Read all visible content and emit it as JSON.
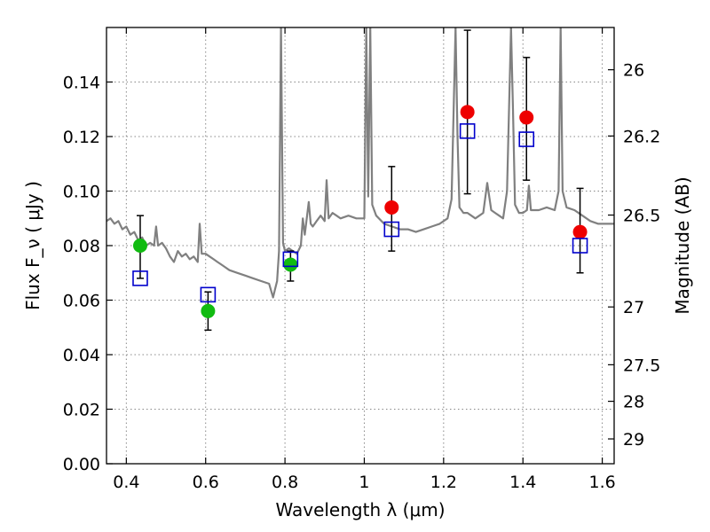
{
  "chart_data": {
    "type": "scatter",
    "xlabel": "Wavelength  λ (μm)",
    "ylabel": "Flux  F_ν  ( μJy )",
    "y2label": "Magnitude (AB)",
    "xlim": [
      0.35,
      1.63
    ],
    "ylim": [
      0.0,
      0.16
    ],
    "xticks": [
      0.4,
      0.6,
      0.8,
      1.0,
      1.2,
      1.4,
      1.6
    ],
    "xtick_labels": [
      "0.4",
      "0.6",
      "0.8",
      "1",
      "1.2",
      "1.4",
      "1.6"
    ],
    "yticks": [
      0.0,
      0.02,
      0.04,
      0.06,
      0.08,
      0.1,
      0.12,
      0.14
    ],
    "ytick_labels": [
      "0.00",
      "0.02",
      "0.04",
      "0.06",
      "0.08",
      "0.10",
      "0.12",
      "0.14"
    ],
    "y2ticks": [
      {
        "label": "26",
        "flux": 0.1445
      },
      {
        "label": "26.2",
        "flux": 0.1202
      },
      {
        "label": "26.5",
        "flux": 0.0912
      },
      {
        "label": "27",
        "flux": 0.0575
      },
      {
        "label": "27.5",
        "flux": 0.0363
      },
      {
        "label": "28",
        "flux": 0.0229
      },
      {
        "label": "29",
        "flux": 0.0091
      }
    ],
    "grid": true,
    "colors": {
      "spectrum": "#808080",
      "green_points": "#11bb11",
      "red_points": "#ee0000",
      "model_squares": "#0000cc",
      "errorbars": "#000000"
    },
    "spectrum": [
      [
        0.35,
        0.089
      ],
      [
        0.36,
        0.09
      ],
      [
        0.37,
        0.088
      ],
      [
        0.38,
        0.089
      ],
      [
        0.39,
        0.086
      ],
      [
        0.4,
        0.087
      ],
      [
        0.41,
        0.084
      ],
      [
        0.42,
        0.085
      ],
      [
        0.43,
        0.082
      ],
      [
        0.44,
        0.083
      ],
      [
        0.45,
        0.08
      ],
      [
        0.46,
        0.081
      ],
      [
        0.47,
        0.08
      ],
      [
        0.475,
        0.087
      ],
      [
        0.48,
        0.08
      ],
      [
        0.49,
        0.081
      ],
      [
        0.5,
        0.079
      ],
      [
        0.51,
        0.076
      ],
      [
        0.52,
        0.074
      ],
      [
        0.53,
        0.078
      ],
      [
        0.54,
        0.076
      ],
      [
        0.55,
        0.077
      ],
      [
        0.56,
        0.075
      ],
      [
        0.57,
        0.076
      ],
      [
        0.58,
        0.074
      ],
      [
        0.585,
        0.088
      ],
      [
        0.59,
        0.077
      ],
      [
        0.6,
        0.077
      ],
      [
        0.61,
        0.076
      ],
      [
        0.62,
        0.075
      ],
      [
        0.63,
        0.074
      ],
      [
        0.64,
        0.073
      ],
      [
        0.65,
        0.072
      ],
      [
        0.66,
        0.071
      ],
      [
        0.68,
        0.07
      ],
      [
        0.7,
        0.069
      ],
      [
        0.72,
        0.068
      ],
      [
        0.74,
        0.067
      ],
      [
        0.76,
        0.066
      ],
      [
        0.77,
        0.061
      ],
      [
        0.775,
        0.064
      ],
      [
        0.78,
        0.067
      ],
      [
        0.785,
        0.078
      ],
      [
        0.79,
        0.16
      ],
      [
        0.795,
        0.081
      ],
      [
        0.8,
        0.078
      ],
      [
        0.81,
        0.079
      ],
      [
        0.82,
        0.078
      ],
      [
        0.83,
        0.077
      ],
      [
        0.84,
        0.08
      ],
      [
        0.845,
        0.09
      ],
      [
        0.85,
        0.084
      ],
      [
        0.86,
        0.096
      ],
      [
        0.865,
        0.088
      ],
      [
        0.87,
        0.087
      ],
      [
        0.88,
        0.089
      ],
      [
        0.89,
        0.091
      ],
      [
        0.9,
        0.089
      ],
      [
        0.905,
        0.104
      ],
      [
        0.91,
        0.09
      ],
      [
        0.92,
        0.092
      ],
      [
        0.93,
        0.091
      ],
      [
        0.94,
        0.09
      ],
      [
        0.96,
        0.091
      ],
      [
        0.98,
        0.09
      ],
      [
        0.99,
        0.09
      ],
      [
        1.0,
        0.09
      ],
      [
        1.005,
        0.16
      ],
      [
        1.01,
        0.098
      ],
      [
        1.015,
        0.16
      ],
      [
        1.02,
        0.095
      ],
      [
        1.03,
        0.091
      ],
      [
        1.05,
        0.088
      ],
      [
        1.07,
        0.087
      ],
      [
        1.09,
        0.086
      ],
      [
        1.11,
        0.086
      ],
      [
        1.13,
        0.085
      ],
      [
        1.15,
        0.086
      ],
      [
        1.17,
        0.087
      ],
      [
        1.19,
        0.088
      ],
      [
        1.21,
        0.09
      ],
      [
        1.22,
        0.097
      ],
      [
        1.23,
        0.16
      ],
      [
        1.235,
        0.12
      ],
      [
        1.24,
        0.094
      ],
      [
        1.25,
        0.092
      ],
      [
        1.26,
        0.092
      ],
      [
        1.27,
        0.091
      ],
      [
        1.28,
        0.09
      ],
      [
        1.29,
        0.091
      ],
      [
        1.3,
        0.092
      ],
      [
        1.31,
        0.103
      ],
      [
        1.32,
        0.093
      ],
      [
        1.33,
        0.092
      ],
      [
        1.34,
        0.091
      ],
      [
        1.35,
        0.09
      ],
      [
        1.36,
        0.1
      ],
      [
        1.37,
        0.16
      ],
      [
        1.375,
        0.13
      ],
      [
        1.38,
        0.095
      ],
      [
        1.39,
        0.092
      ],
      [
        1.4,
        0.092
      ],
      [
        1.41,
        0.093
      ],
      [
        1.415,
        0.102
      ],
      [
        1.42,
        0.093
      ],
      [
        1.44,
        0.093
      ],
      [
        1.46,
        0.094
      ],
      [
        1.48,
        0.093
      ],
      [
        1.49,
        0.1
      ],
      [
        1.495,
        0.16
      ],
      [
        1.5,
        0.1
      ],
      [
        1.51,
        0.094
      ],
      [
        1.53,
        0.093
      ],
      [
        1.55,
        0.091
      ],
      [
        1.57,
        0.089
      ],
      [
        1.59,
        0.088
      ],
      [
        1.61,
        0.088
      ],
      [
        1.63,
        0.088
      ]
    ],
    "series": [
      {
        "marker": "circle",
        "color": "green",
        "points": [
          {
            "x": 0.435,
            "y": 0.08,
            "err": [
              0.068,
              0.091
            ]
          },
          {
            "x": 0.606,
            "y": 0.056,
            "err": [
              0.049,
              0.063
            ]
          },
          {
            "x": 0.814,
            "y": 0.073,
            "err": [
              0.067,
              0.078
            ]
          }
        ]
      },
      {
        "marker": "circle",
        "color": "red",
        "points": [
          {
            "x": 1.069,
            "y": 0.094,
            "err": [
              0.078,
              0.109
            ]
          },
          {
            "x": 1.26,
            "y": 0.129,
            "err": [
              0.099,
              0.159
            ]
          },
          {
            "x": 1.409,
            "y": 0.127,
            "err": [
              0.104,
              0.149
            ]
          },
          {
            "x": 1.544,
            "y": 0.085,
            "err": [
              0.07,
              0.101
            ]
          }
        ]
      },
      {
        "marker": "open-square",
        "color": "blue",
        "points": [
          {
            "x": 0.435,
            "y": 0.068
          },
          {
            "x": 0.606,
            "y": 0.062
          },
          {
            "x": 0.814,
            "y": 0.075
          },
          {
            "x": 1.069,
            "y": 0.086
          },
          {
            "x": 1.26,
            "y": 0.122
          },
          {
            "x": 1.409,
            "y": 0.119
          },
          {
            "x": 1.544,
            "y": 0.08
          }
        ]
      }
    ]
  }
}
